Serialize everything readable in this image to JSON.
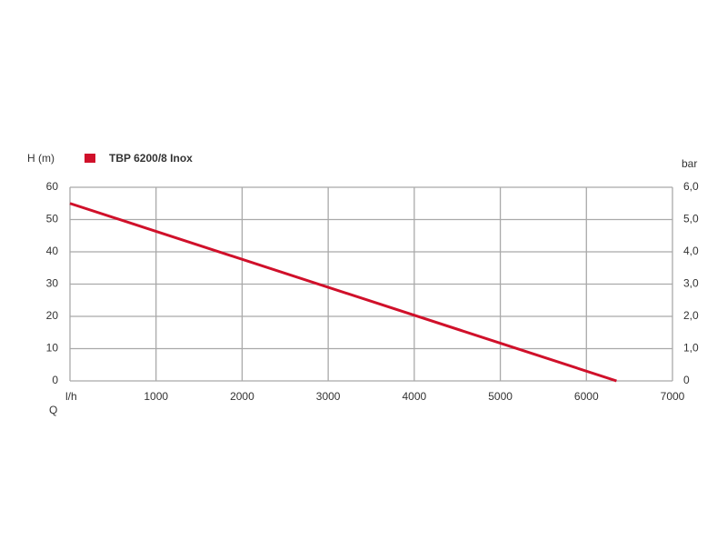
{
  "chart_data": {
    "type": "line",
    "y_label": "H (m)",
    "y2_label": "bar",
    "x_label": "Q",
    "x_unit": "l/h",
    "x": [
      0,
      6350
    ],
    "series": [
      {
        "name": "TBP 6200/8 Inox",
        "color": "#d0102a",
        "values": [
          55,
          0
        ]
      }
    ],
    "xlim": [
      0,
      7000
    ],
    "xticks": [
      1000,
      2000,
      3000,
      4000,
      5000,
      6000,
      7000
    ],
    "ylim": [
      0,
      60
    ],
    "yticks": [
      0,
      10,
      20,
      30,
      40,
      50,
      60
    ],
    "y2lim": [
      0,
      6
    ],
    "y2ticks": [
      0,
      {
        "value": 1,
        "label": "1,0"
      },
      {
        "value": 2,
        "label": "2,0"
      },
      {
        "value": 3,
        "label": "3,0"
      },
      {
        "value": 4,
        "label": "4,0"
      },
      {
        "value": 5,
        "label": "5,0"
      },
      {
        "value": 6,
        "label": "6,0"
      }
    ],
    "grid": true
  }
}
